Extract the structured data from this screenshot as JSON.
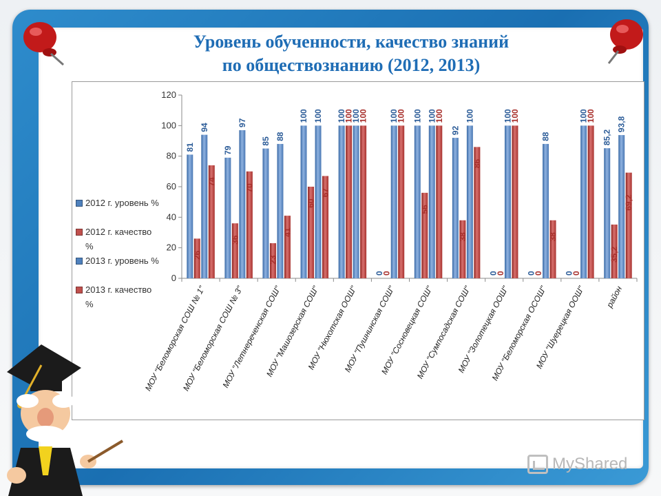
{
  "title": {
    "line1": "Уровень обученности, качество знаний",
    "line2": "по обществознанию (2012, 2013)"
  },
  "watermark": {
    "text": "MyShared",
    "icon": "myshared-logo-icon"
  },
  "colors": {
    "frame": "#1f78bf",
    "title": "#1f6db5",
    "blue_series": "#4f81bd",
    "red_series": "#c0504d"
  },
  "chart_data": {
    "type": "bar",
    "ylim": [
      0,
      120
    ],
    "yticks": [
      "0",
      "20",
      "40",
      "60",
      "80",
      "100",
      "120"
    ],
    "grid": false,
    "legend_position": "left",
    "categories": [
      "МОУ \"Беломорская СОШ № 1\"",
      "МОУ \"Беломорская СОШ № 3\"",
      "МОУ \"Летнереченская СОШ\"",
      "МОУ \"Машозерская СОШ\"",
      "МОУ \"Нюхотская ООШ\"",
      "МОУ \"Пушнинская СОШ\"",
      "МОУ \"Сосновецкая СОШ\"",
      "МОУ \"Сумпосадская СОШ\"",
      "МОУ \"Золотецкая ООШ\"",
      "МОУ \"Беломорская ОСОШ\"",
      "МОУ \"Шуерецкая ООШ\"",
      "район"
    ],
    "series": [
      {
        "name": "2012 г. уровень %",
        "color": "#4f81bd",
        "values": [
          81,
          79,
          85,
          100,
          100,
          0,
          100,
          92,
          0,
          0,
          0,
          85.2
        ],
        "labels": [
          "81",
          "79",
          "85",
          "100",
          "100",
          "0",
          "100",
          "92",
          "0",
          "0",
          "0",
          "85,2"
        ]
      },
      {
        "name": "2012 г. качество %",
        "color": "#c0504d",
        "values": [
          26,
          36,
          23,
          60,
          100,
          0,
          56,
          38,
          0,
          0,
          0,
          35.2
        ],
        "labels": [
          "26",
          "36",
          "23",
          "60",
          "100",
          "0",
          "56",
          "38",
          "0",
          "0",
          "0",
          "35,2"
        ]
      },
      {
        "name": "2013 г. уровень %",
        "color": "#4f81bd",
        "values": [
          94,
          97,
          88,
          100,
          100,
          100,
          100,
          100,
          100,
          88,
          100,
          93.8
        ],
        "labels": [
          "94",
          "97",
          "88",
          "100",
          "100",
          "100",
          "100",
          "100",
          "100",
          "88",
          "100",
          "93,8"
        ]
      },
      {
        "name": "2013 г. качество %",
        "color": "#c0504d",
        "values": [
          74,
          70,
          41,
          67,
          100,
          100,
          100,
          86,
          100,
          38,
          100,
          69.2
        ],
        "labels": [
          "74",
          "70",
          "41",
          "67",
          "100",
          "100",
          "100",
          "86",
          "100",
          "38",
          "100",
          "69,2"
        ]
      }
    ]
  }
}
